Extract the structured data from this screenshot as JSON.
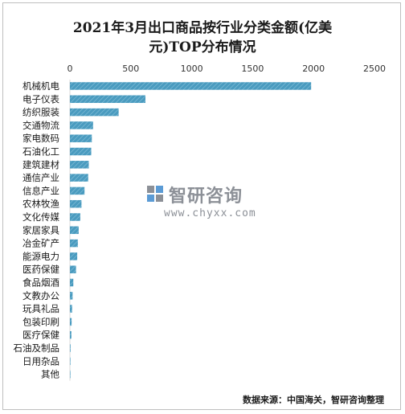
{
  "chart_data": {
    "type": "bar",
    "orientation": "horizontal",
    "title_line1": "2021年3月出口商品按行业分类金额(亿美",
    "title_line2": "元)TOP分布情况",
    "xlim": [
      0,
      2500
    ],
    "xticks": [
      0,
      500,
      1000,
      1500,
      2000,
      2500
    ],
    "categories": [
      "机械机电",
      "电子仪表",
      "纺织服装",
      "交通物流",
      "家电数码",
      "石油化工",
      "建筑建材",
      "通信产业",
      "信息产业",
      "农林牧渔",
      "文化传媒",
      "家居家具",
      "冶金矿产",
      "能源电力",
      "医药保健",
      "食品烟酒",
      "文教办公",
      "玩具礼品",
      "包装印刷",
      "医疗保健",
      "石油及制品",
      "日用杂品",
      "其他"
    ],
    "values": [
      1980,
      620,
      400,
      190,
      180,
      175,
      155,
      150,
      120,
      95,
      85,
      72,
      65,
      60,
      50,
      28,
      22,
      18,
      14,
      12,
      5,
      2,
      1
    ],
    "bar_color": "#4a9bbf",
    "grid": false,
    "legend": "none"
  },
  "source_text": "数据来源：中国海关，智研咨询整理",
  "watermark": {
    "brand": "智研咨询",
    "url": "www.chyxx.com"
  }
}
